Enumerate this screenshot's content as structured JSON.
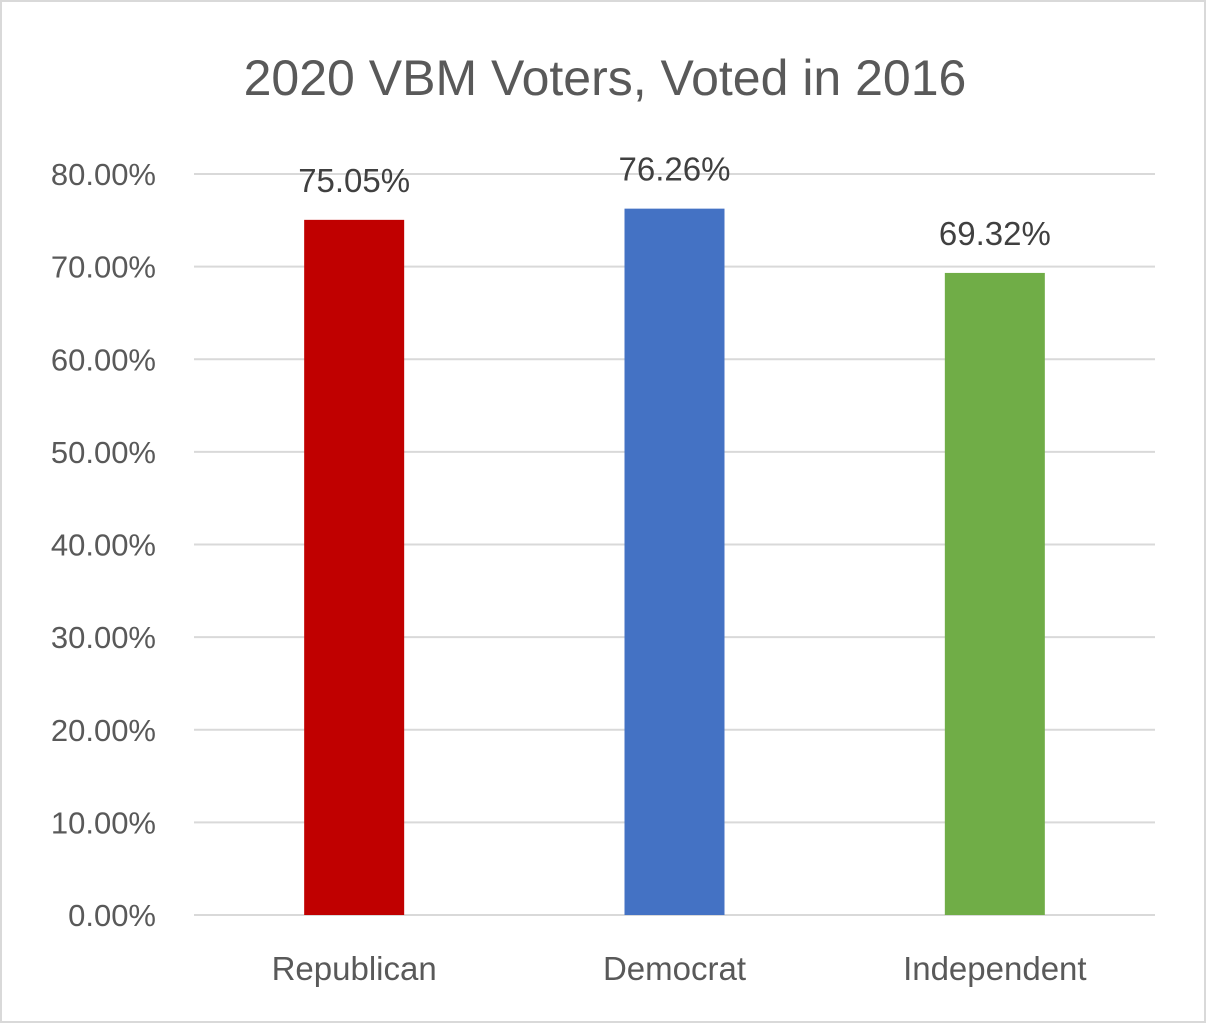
{
  "chart_data": {
    "type": "bar",
    "title": "2020 VBM Voters, Voted in 2016",
    "xlabel": "",
    "ylabel": "",
    "categories": [
      "Republican",
      "Democrat",
      "Independent"
    ],
    "values": [
      75.05,
      76.26,
      69.32
    ],
    "data_labels": [
      "75.05%",
      "76.26%",
      "69.32%"
    ],
    "colors": [
      "#c00000",
      "#4472c4",
      "#70ad47"
    ],
    "ylim": [
      0,
      80
    ],
    "yticks": [
      0,
      10,
      20,
      30,
      40,
      50,
      60,
      70,
      80
    ],
    "ytick_labels": [
      "0.00%",
      "10.00%",
      "20.00%",
      "30.00%",
      "40.00%",
      "50.00%",
      "60.00%",
      "70.00%",
      "80.00%"
    ],
    "grid": true,
    "legend": "none",
    "gridline_color": "#d9d9d9",
    "text_color": "#595959"
  }
}
